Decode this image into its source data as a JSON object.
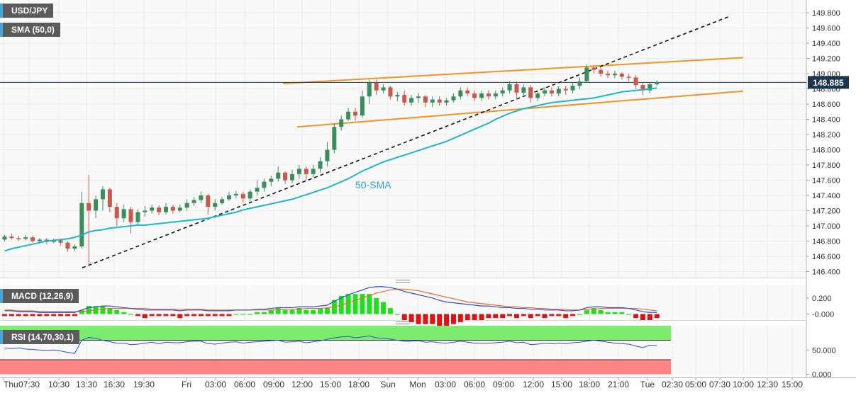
{
  "labels": {
    "pair": "USD/JPY",
    "sma": "SMA (50,0)",
    "macd": "MACD (12,26,9)",
    "rsi": "RSI (14,70,30,1)",
    "sma_annotation": "50-SMA"
  },
  "colors": {
    "up": "#3b8e5c",
    "down": "#c8594b",
    "sma": "#1eb4d4",
    "channel": "#f0951f",
    "trendline": "#111111",
    "macd_line": "#2b4fd6",
    "signal_line": "#ec6a2a",
    "hist_pos": "#1ee01e",
    "hist_neg": "#dd1414",
    "rsi_line": "#2b4fd6",
    "rsi_over": "#7cec6e",
    "rsi_under": "#ff8585",
    "price_box": "#1e3550"
  },
  "chart_data": [
    {
      "type": "candlestick",
      "title": "USD/JPY",
      "ylim": [
        146.4,
        149.8
      ],
      "y_ticks": [
        "146.400",
        "146.600",
        "146.800",
        "147.000",
        "147.200",
        "147.400",
        "147.600",
        "147.800",
        "148.000",
        "148.200",
        "148.400",
        "148.600",
        "148.800",
        "149.000",
        "149.200",
        "149.400",
        "149.600",
        "149.800"
      ],
      "x_ticks": [
        "Thu",
        "07:30",
        "10:30",
        "13:30",
        "16:30",
        "19:30",
        "Fri",
        "03:00",
        "06:00",
        "09:00",
        "12:00",
        "15:00",
        "18:00",
        "Sun",
        "Mon",
        "03:00",
        "06:00",
        "09:00",
        "12:00",
        "15:00",
        "18:00",
        "21:00",
        "Tue",
        "02:30",
        "05:00",
        "07:30",
        "10:00",
        "12:30",
        "15:00"
      ],
      "last_price": "148.885",
      "annotation": "50-SMA",
      "series": [
        {
          "name": "SMA (50,0)",
          "values": [
            146.67,
            146.7,
            146.72,
            146.74,
            146.76,
            146.78,
            146.8,
            146.81,
            146.82,
            146.83,
            146.85,
            146.88,
            146.92,
            146.94,
            146.95,
            146.97,
            146.98,
            146.99,
            147,
            147.01,
            147.01,
            147.02,
            147.03,
            147.04,
            147.05,
            147.06,
            147.07,
            147.08,
            147.09,
            147.1,
            147.12,
            147.14,
            147.16,
            147.18,
            147.21,
            147.23,
            147.25,
            147.27,
            147.29,
            147.31,
            147.33,
            147.35,
            147.38,
            147.41,
            147.44,
            147.47,
            147.5,
            147.54,
            147.58,
            147.62,
            147.67,
            147.72,
            147.76,
            147.8,
            147.84,
            147.87,
            147.9,
            147.93,
            147.96,
            147.99,
            148.02,
            148.05,
            148.08,
            148.11,
            148.15,
            148.19,
            148.23,
            148.27,
            148.31,
            148.35,
            148.4,
            148.44,
            148.48,
            148.51,
            148.54,
            148.56,
            148.58,
            148.6,
            148.62,
            148.63,
            148.64,
            148.65,
            148.66,
            148.67,
            148.68,
            148.7,
            148.72,
            148.74,
            148.76,
            148.77,
            148.78,
            148.79,
            148.8,
            148.81
          ]
        }
      ],
      "candles": [
        [
          146.82,
          146.86,
          146.88,
          146.8
        ],
        [
          146.86,
          146.84,
          146.9,
          146.82
        ],
        [
          146.84,
          146.83,
          146.87,
          146.8
        ],
        [
          146.83,
          146.85,
          146.88,
          146.81
        ],
        [
          146.85,
          146.8,
          146.87,
          146.78
        ],
        [
          146.8,
          146.82,
          146.84,
          146.77
        ],
        [
          146.82,
          146.79,
          146.84,
          146.76
        ],
        [
          146.79,
          146.81,
          146.83,
          146.77
        ],
        [
          146.81,
          146.78,
          146.82,
          146.74
        ],
        [
          146.78,
          146.7,
          146.8,
          146.66
        ],
        [
          146.7,
          146.73,
          146.76,
          146.67
        ],
        [
          146.73,
          147.3,
          147.45,
          146.7
        ],
        [
          147.3,
          147.2,
          147.67,
          146.48
        ],
        [
          147.2,
          147.35,
          147.4,
          147.1
        ],
        [
          147.35,
          147.48,
          147.52,
          147.2
        ],
        [
          147.48,
          147.25,
          147.5,
          147.18
        ],
        [
          147.25,
          147.1,
          147.3,
          147
        ],
        [
          147.1,
          147.22,
          147.28,
          147.05
        ],
        [
          147.22,
          147.05,
          147.25,
          146.9
        ],
        [
          147.05,
          147.18,
          147.22,
          147
        ],
        [
          147.18,
          147.2,
          147.26,
          147.12
        ],
        [
          147.2,
          147.24,
          147.28,
          147.16
        ],
        [
          147.24,
          147.18,
          147.27,
          147.14
        ],
        [
          147.18,
          147.25,
          147.3,
          147.15
        ],
        [
          147.25,
          147.2,
          147.28,
          147.16
        ],
        [
          147.2,
          147.24,
          147.28,
          147.18
        ],
        [
          147.24,
          147.3,
          147.35,
          147.2
        ],
        [
          147.3,
          147.34,
          147.38,
          147.26
        ],
        [
          147.34,
          147.4,
          147.45,
          147.3
        ],
        [
          147.4,
          147.25,
          147.42,
          147.15
        ],
        [
          147.25,
          147.3,
          147.35,
          147.2
        ],
        [
          147.3,
          147.35,
          147.38,
          147.28
        ],
        [
          147.35,
          147.4,
          147.45,
          147.33
        ],
        [
          147.4,
          147.42,
          147.46,
          147.36
        ],
        [
          147.42,
          147.36,
          147.45,
          147.3
        ],
        [
          147.36,
          147.45,
          147.48,
          147.32
        ],
        [
          147.45,
          147.5,
          147.6,
          147.4
        ],
        [
          147.5,
          147.58,
          147.62,
          147.45
        ],
        [
          147.58,
          147.62,
          147.66,
          147.52
        ],
        [
          147.62,
          147.7,
          147.78,
          147.58
        ],
        [
          147.7,
          147.6,
          147.72,
          147.55
        ],
        [
          147.6,
          147.68,
          147.74,
          147.56
        ],
        [
          147.68,
          147.75,
          147.8,
          147.62
        ],
        [
          147.75,
          147.68,
          147.78,
          147.6
        ],
        [
          147.68,
          147.75,
          147.8,
          147.64
        ],
        [
          147.75,
          147.85,
          147.9,
          147.7
        ],
        [
          147.85,
          148,
          148.1,
          147.78
        ],
        [
          148,
          148.3,
          148.35,
          147.95
        ],
        [
          148.3,
          148.4,
          148.45,
          148.25
        ],
        [
          148.4,
          148.5,
          148.55,
          148.38
        ],
        [
          148.5,
          148.45,
          148.55,
          148.38
        ],
        [
          148.45,
          148.7,
          148.78,
          148.42
        ],
        [
          148.7,
          148.88,
          148.92,
          148.6
        ],
        [
          148.88,
          148.78,
          148.92,
          148.72
        ],
        [
          148.78,
          148.82,
          148.86,
          148.74
        ],
        [
          148.82,
          148.7,
          148.84,
          148.66
        ],
        [
          148.7,
          148.72,
          148.76,
          148.64
        ],
        [
          148.72,
          148.62,
          148.78,
          148.58
        ],
        [
          148.62,
          148.68,
          148.72,
          148.58
        ],
        [
          148.68,
          148.7,
          148.74,
          148.62
        ],
        [
          148.7,
          148.62,
          148.72,
          148.56
        ],
        [
          148.62,
          148.66,
          148.7,
          148.56
        ],
        [
          148.66,
          148.62,
          148.7,
          148.58
        ],
        [
          148.62,
          148.65,
          148.68,
          148.58
        ],
        [
          148.65,
          148.7,
          148.74,
          148.62
        ],
        [
          148.7,
          148.78,
          148.82,
          148.66
        ],
        [
          148.78,
          148.74,
          148.82,
          148.7
        ],
        [
          148.74,
          148.68,
          148.78,
          148.64
        ],
        [
          148.68,
          148.74,
          148.78,
          148.64
        ],
        [
          148.74,
          148.7,
          148.78,
          148.66
        ],
        [
          148.7,
          148.74,
          148.78,
          148.66
        ],
        [
          148.74,
          148.78,
          148.82,
          148.7
        ],
        [
          148.78,
          148.86,
          148.9,
          148.74
        ],
        [
          148.86,
          148.75,
          148.9,
          148.68
        ],
        [
          148.75,
          148.82,
          148.86,
          148.7
        ],
        [
          148.82,
          148.68,
          148.85,
          148.62
        ],
        [
          148.68,
          148.74,
          148.78,
          148.64
        ],
        [
          148.74,
          148.78,
          148.82,
          148.7
        ],
        [
          148.78,
          148.74,
          148.82,
          148.7
        ],
        [
          148.74,
          148.8,
          148.84,
          148.7
        ],
        [
          148.8,
          148.78,
          148.84,
          148.72
        ],
        [
          148.78,
          148.84,
          148.88,
          148.74
        ],
        [
          148.84,
          148.9,
          148.95,
          148.8
        ],
        [
          148.9,
          149.08,
          149.12,
          148.88
        ],
        [
          149.08,
          149.05,
          149.1,
          149
        ],
        [
          149.05,
          149,
          149.08,
          148.96
        ],
        [
          149,
          148.98,
          149.04,
          148.94
        ],
        [
          148.98,
          149,
          149.04,
          148.94
        ],
        [
          149,
          148.96,
          149.02,
          148.92
        ],
        [
          148.96,
          148.95,
          149,
          148.9
        ],
        [
          148.95,
          148.85,
          148.98,
          148.8
        ],
        [
          148.85,
          148.78,
          148.88,
          148.72
        ],
        [
          148.78,
          148.86,
          148.88,
          148.74
        ],
        [
          148.86,
          148.89,
          148.91,
          148.84
        ]
      ]
    },
    {
      "type": "line",
      "title": "MACD (12,26,9)",
      "y_ticks": [
        "0.200",
        "-0.000"
      ],
      "series": [
        {
          "name": "MACD",
          "values": [
            0.04,
            0.04,
            0.03,
            0.03,
            0.03,
            0.02,
            0.02,
            0.02,
            0.02,
            0.02,
            0.02,
            0.05,
            0.08,
            0.09,
            0.1,
            0.1,
            0.09,
            0.08,
            0.07,
            0.06,
            0.05,
            0.05,
            0.05,
            0.05,
            0.05,
            0.04,
            0.05,
            0.05,
            0.05,
            0.04,
            0.04,
            0.04,
            0.04,
            0.05,
            0.05,
            0.05,
            0.06,
            0.06,
            0.07,
            0.08,
            0.08,
            0.08,
            0.09,
            0.09,
            0.09,
            0.1,
            0.11,
            0.16,
            0.2,
            0.24,
            0.27,
            0.3,
            0.33,
            0.34,
            0.34,
            0.33,
            0.31,
            0.28,
            0.26,
            0.24,
            0.22,
            0.2,
            0.17,
            0.15,
            0.14,
            0.13,
            0.12,
            0.11,
            0.1,
            0.1,
            0.09,
            0.08,
            0.08,
            0.07,
            0.07,
            0.06,
            0.06,
            0.05,
            0.05,
            0.05,
            0.04,
            0.04,
            0.05,
            0.08,
            0.09,
            0.09,
            0.08,
            0.08,
            0.08,
            0.07,
            0.05,
            0.03,
            0.02,
            0.02
          ]
        },
        {
          "name": "Signal",
          "values": [
            0.05,
            0.05,
            0.04,
            0.04,
            0.04,
            0.03,
            0.03,
            0.03,
            0.03,
            0.03,
            0.03,
            0.03,
            0.04,
            0.05,
            0.06,
            0.07,
            0.07,
            0.07,
            0.07,
            0.07,
            0.07,
            0.06,
            0.06,
            0.06,
            0.06,
            0.06,
            0.06,
            0.06,
            0.06,
            0.05,
            0.05,
            0.05,
            0.05,
            0.05,
            0.05,
            0.05,
            0.05,
            0.05,
            0.05,
            0.05,
            0.06,
            0.06,
            0.06,
            0.07,
            0.07,
            0.07,
            0.08,
            0.09,
            0.11,
            0.14,
            0.17,
            0.2,
            0.23,
            0.26,
            0.28,
            0.3,
            0.31,
            0.31,
            0.3,
            0.29,
            0.27,
            0.25,
            0.23,
            0.21,
            0.19,
            0.17,
            0.15,
            0.14,
            0.13,
            0.12,
            0.11,
            0.1,
            0.09,
            0.09,
            0.08,
            0.08,
            0.07,
            0.07,
            0.06,
            0.06,
            0.06,
            0.05,
            0.05,
            0.06,
            0.06,
            0.07,
            0.07,
            0.07,
            0.07,
            0.07,
            0.07,
            0.06,
            0.05,
            0.04
          ]
        }
      ]
    },
    {
      "type": "line",
      "title": "RSI (14,70,30,1)",
      "y_ticks": [
        "50.000",
        "0.000"
      ],
      "overbought": 70,
      "oversold": 30,
      "series": [
        {
          "name": "RSI",
          "values": [
            54,
            53,
            54,
            52,
            51,
            50,
            49,
            50,
            48,
            45,
            43,
            70,
            76,
            74,
            70,
            67,
            64,
            64,
            61,
            62,
            64,
            66,
            63,
            66,
            65,
            65,
            67,
            68,
            68,
            63,
            62,
            64,
            66,
            67,
            64,
            66,
            67,
            68,
            69,
            70,
            66,
            67,
            68,
            65,
            67,
            69,
            72,
            75,
            77,
            78,
            75,
            77,
            79,
            75,
            74,
            72,
            70,
            68,
            68,
            69,
            66,
            67,
            65,
            64,
            66,
            68,
            66,
            64,
            64,
            64,
            65,
            66,
            68,
            65,
            66,
            61,
            62,
            64,
            63,
            64,
            63,
            65,
            66,
            68,
            70,
            68,
            66,
            64,
            63,
            62,
            58,
            55,
            60,
            59
          ]
        }
      ]
    }
  ]
}
